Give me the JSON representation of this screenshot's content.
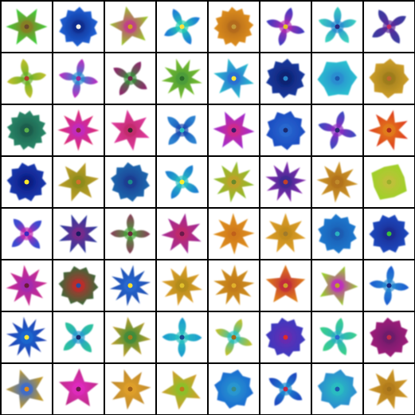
{
  "grid": {
    "rows": 8,
    "cols": 8,
    "tiles": [
      {
        "shape": "star",
        "petals": 6,
        "c1": "#3fcf3a",
        "c2": "#8a7a24",
        "center": "#6b4a2a"
      },
      {
        "shape": "round",
        "petals": 10,
        "c1": "#1f63d8",
        "c2": "#0e2a8a",
        "center": "#f2f0e8"
      },
      {
        "shape": "star",
        "petals": 5,
        "c1": "#9cc62b",
        "c2": "#c23a8a",
        "center": "#d29b1f"
      },
      {
        "shape": "cross",
        "petals": 4,
        "c1": "#1a7ad8",
        "c2": "#2ad0b0",
        "center": "#ffe23a"
      },
      {
        "shape": "round",
        "petals": 12,
        "c1": "#e09020",
        "c2": "#b0681a",
        "center": "#c49a3a"
      },
      {
        "shape": "cross",
        "petals": 4,
        "c1": "#3a3ac0",
        "c2": "#b02ab0",
        "center": "#e0c02a"
      },
      {
        "shape": "cross",
        "petals": 5,
        "c1": "#3ad0c0",
        "c2": "#2a8ad0",
        "center": "#2a2a80"
      },
      {
        "shape": "cross",
        "petals": 4,
        "c1": "#3a3aa0",
        "c2": "#5a2a9a",
        "center": "#c02a6a"
      },
      {
        "shape": "cross",
        "petals": 4,
        "c1": "#c0c02a",
        "c2": "#6ab02a",
        "center": "#b0402a"
      },
      {
        "shape": "cross",
        "petals": 4,
        "c1": "#c02ac0",
        "c2": "#2a8ad0",
        "center": "#9a2a9a"
      },
      {
        "shape": "cross",
        "petals": 4,
        "c1": "#8a2a6a",
        "c2": "#3a8a3a",
        "center": "#6a2a4a"
      },
      {
        "shape": "star",
        "petals": 9,
        "c1": "#7ac02a",
        "c2": "#4a9a3a",
        "center": "#2a6a2a"
      },
      {
        "shape": "star",
        "petals": 6,
        "c1": "#2ac0d0",
        "c2": "#2a6ad0",
        "center": "#ffe83a"
      },
      {
        "shape": "round",
        "petals": 10,
        "c1": "#1a3aa0",
        "c2": "#0a2070",
        "center": "#2a8ad0"
      },
      {
        "shape": "round",
        "petals": 6,
        "c1": "#2ac0d0",
        "c2": "#2a8ad0",
        "center": "#1a5ab0"
      },
      {
        "shape": "round",
        "petals": 8,
        "c1": "#d0a02a",
        "c2": "#9a7a1a",
        "center": "#c0682a"
      },
      {
        "shape": "round",
        "petals": 12,
        "c1": "#2a8a6a",
        "c2": "#1a5a4a",
        "center": "#5ab04a"
      },
      {
        "shape": "star",
        "petals": 8,
        "c1": "#e02a6a",
        "c2": "#c02ac0",
        "center": "#8a2a3a"
      },
      {
        "shape": "star",
        "petals": 6,
        "c1": "#e03aa0",
        "c2": "#c02a6a",
        "center": "#3a2a2a"
      },
      {
        "shape": "cross",
        "petals": 4,
        "c1": "#2a80d0",
        "c2": "#1a4ab0",
        "center": "#2ac0c0"
      },
      {
        "shape": "star",
        "petals": 6,
        "c1": "#a02ad0",
        "c2": "#d02a8a",
        "center": "#3a1a6a"
      },
      {
        "shape": "round",
        "petals": 9,
        "c1": "#1a4ac0",
        "c2": "#2a6ad0",
        "center": "#1a2a70"
      },
      {
        "shape": "cross",
        "petals": 4,
        "c1": "#3a4ac0",
        "c2": "#8a2ac0",
        "center": "#2a2a70"
      },
      {
        "shape": "star",
        "petals": 7,
        "c1": "#e03a1a",
        "c2": "#e0801a",
        "center": "#b02a1a"
      },
      {
        "shape": "round",
        "petals": 10,
        "c1": "#1a3ab0",
        "c2": "#0a1a80",
        "center": "#ffe82a"
      },
      {
        "shape": "star",
        "petals": 6,
        "c1": "#c0a02a",
        "c2": "#8a8a1a",
        "center": "#d0702a"
      },
      {
        "shape": "round",
        "petals": 10,
        "c1": "#1a6ab0",
        "c2": "#1a3a90",
        "center": "#1a8a8a"
      },
      {
        "shape": "cross",
        "petals": 4,
        "c1": "#1a80d0",
        "c2": "#2ac0c0",
        "center": "#fff02a"
      },
      {
        "shape": "star",
        "petals": 8,
        "c1": "#8ac02a",
        "c2": "#c0a02a",
        "center": "#6a8a2a"
      },
      {
        "shape": "star",
        "petals": 9,
        "c1": "#8a2ab0",
        "c2": "#3a2a90",
        "center": "#c0402a"
      },
      {
        "shape": "star",
        "petals": 8,
        "c1": "#d09a2a",
        "c2": "#b0701a",
        "center": "#c08a2a"
      },
      {
        "shape": "round",
        "petals": 4,
        "c1": "#a0d02a",
        "c2": "#c0c03a",
        "center": "#9ab02a"
      },
      {
        "shape": "cross",
        "petals": 4,
        "c1": "#3a4ad0",
        "c2": "#c02ab0",
        "center": "#3a2ac0"
      },
      {
        "shape": "star",
        "petals": 8,
        "c1": "#2a3aa0",
        "c2": "#7a2a8a",
        "center": "#1a1a60"
      },
      {
        "shape": "cross",
        "petals": 4,
        "c1": "#8a3a5a",
        "c2": "#4aa03a",
        "center": "#6a2a3a"
      },
      {
        "shape": "star",
        "petals": 7,
        "c1": "#a02a9a",
        "c2": "#c02a6a",
        "center": "#6a1a4a"
      },
      {
        "shape": "star",
        "petals": 8,
        "c1": "#e0901a",
        "c2": "#d07a1a",
        "center": "#c0601a"
      },
      {
        "shape": "star",
        "petals": 7,
        "c1": "#e0a02a",
        "c2": "#c08a1a",
        "center": "#a07a2a"
      },
      {
        "shape": "round",
        "petals": 10,
        "c1": "#1a7ad0",
        "c2": "#1a5ab0",
        "center": "#2ab0c0"
      },
      {
        "shape": "round",
        "petals": 10,
        "c1": "#1a4ac0",
        "c2": "#1a2a90",
        "center": "#3ac03a"
      },
      {
        "shape": "star",
        "petals": 8,
        "c1": "#d02a8a",
        "c2": "#a02ab0",
        "center": "#6a1a3a"
      },
      {
        "shape": "round",
        "petals": 10,
        "c1": "#3a6a3a",
        "c2": "#c02a2a",
        "center": "#2a4aa0"
      },
      {
        "shape": "star",
        "petals": 10,
        "c1": "#1a4ab0",
        "c2": "#2a6ad0",
        "center": "#ffe02a"
      },
      {
        "shape": "star",
        "petals": 8,
        "c1": "#e0a02a",
        "c2": "#b08a1a",
        "center": "#e0c02a"
      },
      {
        "shape": "star",
        "petals": 9,
        "c1": "#d0901a",
        "c2": "#c07a1a",
        "center": "#e0b02a"
      },
      {
        "shape": "star",
        "petals": 5,
        "c1": "#e0801a",
        "c2": "#c02a3a",
        "center": "#d0a02a"
      },
      {
        "shape": "star",
        "petals": 5,
        "c1": "#9ad02a",
        "c2": "#c02ac0",
        "center": "#c0a02a"
      },
      {
        "shape": "cross",
        "petals": 4,
        "c1": "#1a5ad0",
        "c2": "#2a8ad0",
        "center": "#1a2a80"
      },
      {
        "shape": "star",
        "petals": 10,
        "c1": "#1a3ab0",
        "c2": "#1a6ad0",
        "center": "#ffe83a"
      },
      {
        "shape": "cross",
        "petals": 4,
        "c1": "#2ac0a0",
        "c2": "#2a9ad0",
        "center": "#1a2a70"
      },
      {
        "shape": "star",
        "petals": 7,
        "c1": "#c0a02a",
        "c2": "#3a8a3a",
        "center": "#a07a1a"
      },
      {
        "shape": "cross",
        "petals": 4,
        "c1": "#1a9ad0",
        "c2": "#2ac0c0",
        "center": "#1a4a90"
      },
      {
        "shape": "cross",
        "petals": 4,
        "c1": "#c0c02a",
        "c2": "#2ac0c0",
        "center": "#a06a1a"
      },
      {
        "shape": "round",
        "petals": 10,
        "c1": "#3a3ac0",
        "c2": "#6a2ab0",
        "center": "#e02a2a"
      },
      {
        "shape": "cross",
        "petals": 5,
        "c1": "#3ad08a",
        "c2": "#2ab0c0",
        "center": "#2a6ad0"
      },
      {
        "shape": "round",
        "petals": 10,
        "c1": "#a01a7a",
        "c2": "#6a1a6a",
        "center": "#c02a4a"
      },
      {
        "shape": "star",
        "petals": 5,
        "c1": "#c09a2a",
        "c2": "#3a6ad0",
        "center": "#e08a1a"
      },
      {
        "shape": "star",
        "petals": 5,
        "c1": "#c02a8a",
        "c2": "#e02ac0",
        "center": "#6a1a4a"
      },
      {
        "shape": "star",
        "petals": 7,
        "c1": "#c08a2a",
        "c2": "#e0a02a",
        "center": "#a0601a"
      },
      {
        "shape": "star",
        "petals": 5,
        "c1": "#d0a02a",
        "c2": "#8ac02a",
        "center": "#c07a1a"
      },
      {
        "shape": "round",
        "petals": 8,
        "c1": "#1a6ad0",
        "c2": "#2a9ad0",
        "center": "#3a8a8a"
      },
      {
        "shape": "cross",
        "petals": 4,
        "c1": "#1a4ac0",
        "c2": "#1a8ad0",
        "center": "#c02a4a"
      },
      {
        "shape": "round",
        "petals": 8,
        "c1": "#2a8ad0",
        "c2": "#2ac0c0",
        "center": "#1a5ab0"
      },
      {
        "shape": "star",
        "petals": 7,
        "c1": "#d09a2a",
        "c2": "#b07a1a",
        "center": "#a0701a"
      }
    ]
  }
}
